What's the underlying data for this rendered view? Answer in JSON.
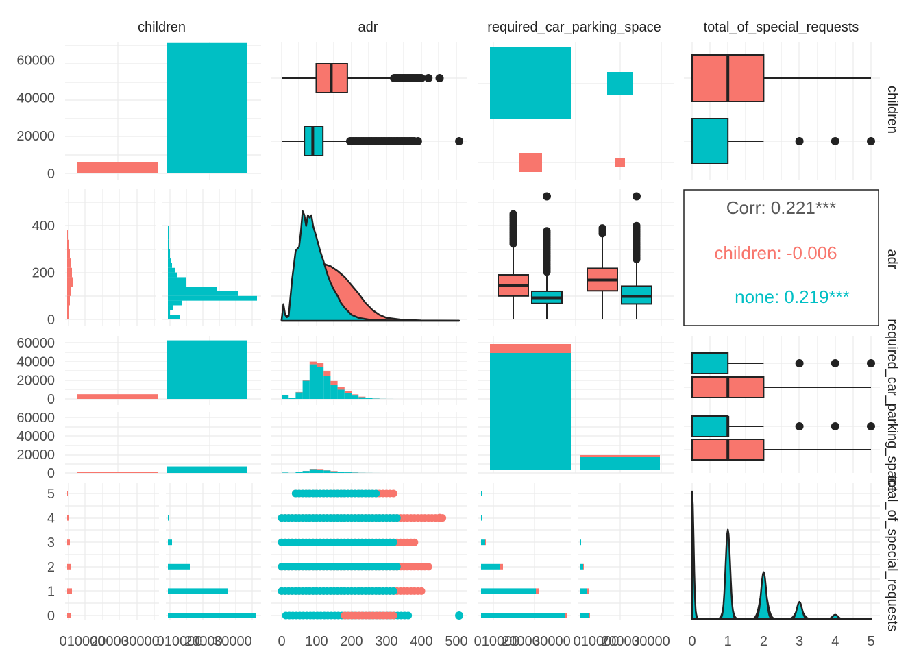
{
  "colors": {
    "children": "#F8766D",
    "none": "#00BFC4",
    "grid": "#EBEBEB",
    "ink": "#222222",
    "text": "#4D4D4D"
  },
  "strip": {
    "top": [
      "children",
      "adr",
      "required_car_parking_space",
      "total_of_special_requests"
    ],
    "right": [
      "children",
      "adr",
      "required_car_parking_space",
      "total_of_special_requests"
    ]
  },
  "axes": {
    "y_row1": [
      "0",
      "20000",
      "40000",
      "60000"
    ],
    "y_row2": [
      "0",
      "200",
      "400"
    ],
    "y_row3a": [
      "0",
      "20000",
      "40000",
      "60000"
    ],
    "y_row3b": [
      "0",
      "20000",
      "40000",
      "60000"
    ],
    "y_row4": [
      "0",
      "1",
      "2",
      "3",
      "4",
      "5"
    ],
    "x_col1": [
      "010000",
      "20000",
      "30000",
      "010000",
      "20000",
      "30000"
    ],
    "x_col2": [
      "0",
      "100",
      "200",
      "300",
      "400",
      "500"
    ],
    "x_col3": [
      "010000",
      "20000",
      "30000",
      "010000",
      "20000",
      "30000"
    ],
    "x_col4": [
      "0",
      "1",
      "2",
      "3",
      "4",
      "5"
    ]
  },
  "correlation": {
    "overall": "Corr: 0.221***",
    "children": "children: -0.006",
    "none": "none: 0.219***"
  },
  "chart_data": {
    "type": "pairs",
    "groups": [
      "children",
      "none"
    ],
    "variables": [
      "children",
      "adr",
      "required_car_parking_space",
      "total_of_special_requests"
    ],
    "children_counts": {
      "children": 6100,
      "none": 69000
    },
    "adr_box": {
      "children": {
        "min": 0,
        "q1": 99,
        "median": 142,
        "q3": 188,
        "max": 318,
        "outliers_to": 452
      },
      "none": {
        "min": 0,
        "q1": 65,
        "median": 89,
        "q3": 118,
        "max": 196,
        "outliers_to": 508
      }
    },
    "parking_mosaic": {
      "none_no_parking": 62500,
      "none_with_parking": 7000,
      "children_no_parking": 5000,
      "children_with_parking": 1100
    },
    "special_requests_box": {
      "children": {
        "min": 0,
        "q1": 0,
        "median": 1,
        "q3": 2,
        "max": 5
      },
      "none": {
        "min": 0,
        "q1": 0,
        "median": 0,
        "q3": 1,
        "max": 2,
        "outliers": [
          3,
          4,
          5
        ]
      }
    },
    "parking_special_requests_box": {
      "no_parking_none": {
        "q1": 0,
        "median": 0,
        "q3": 1,
        "max": 2,
        "outliers": [
          3,
          4,
          5
        ]
      },
      "no_parking_children": {
        "q1": 0,
        "median": 1,
        "q3": 2,
        "max": 5
      },
      "parking_none": {
        "q1": 0,
        "median": 1,
        "q3": 1,
        "max": 2,
        "outliers": [
          3,
          4,
          5
        ]
      },
      "parking_children": {
        "q1": 0,
        "median": 1,
        "q3": 2,
        "max": 5
      }
    },
    "adr_histogram_bins": [
      0,
      20,
      40,
      60,
      80,
      100,
      120,
      140,
      160,
      180,
      200,
      220,
      240,
      260,
      280,
      300
    ],
    "adr_histogram_none": [
      4500,
      1000,
      7800,
      21500,
      41000,
      38000,
      27500,
      17000,
      11000,
      7000,
      4000,
      2000,
      1000,
      400,
      150,
      50
    ],
    "adr_histogram_children": [
      400,
      200,
      400,
      1000,
      3200,
      5000,
      5000,
      4200,
      3400,
      2400,
      1400,
      700,
      300,
      120,
      50,
      20
    ],
    "special_requests_dist": {
      "levels": [
        0,
        1,
        2,
        3,
        4,
        5
      ],
      "none": [
        36000,
        21000,
        6800,
        1000,
        150,
        30
      ],
      "children": [
        3000,
        1900,
        800,
        250,
        50,
        10
      ]
    },
    "corr": {
      "overall": 0.221,
      "children": -0.006,
      "none": 0.219
    }
  }
}
